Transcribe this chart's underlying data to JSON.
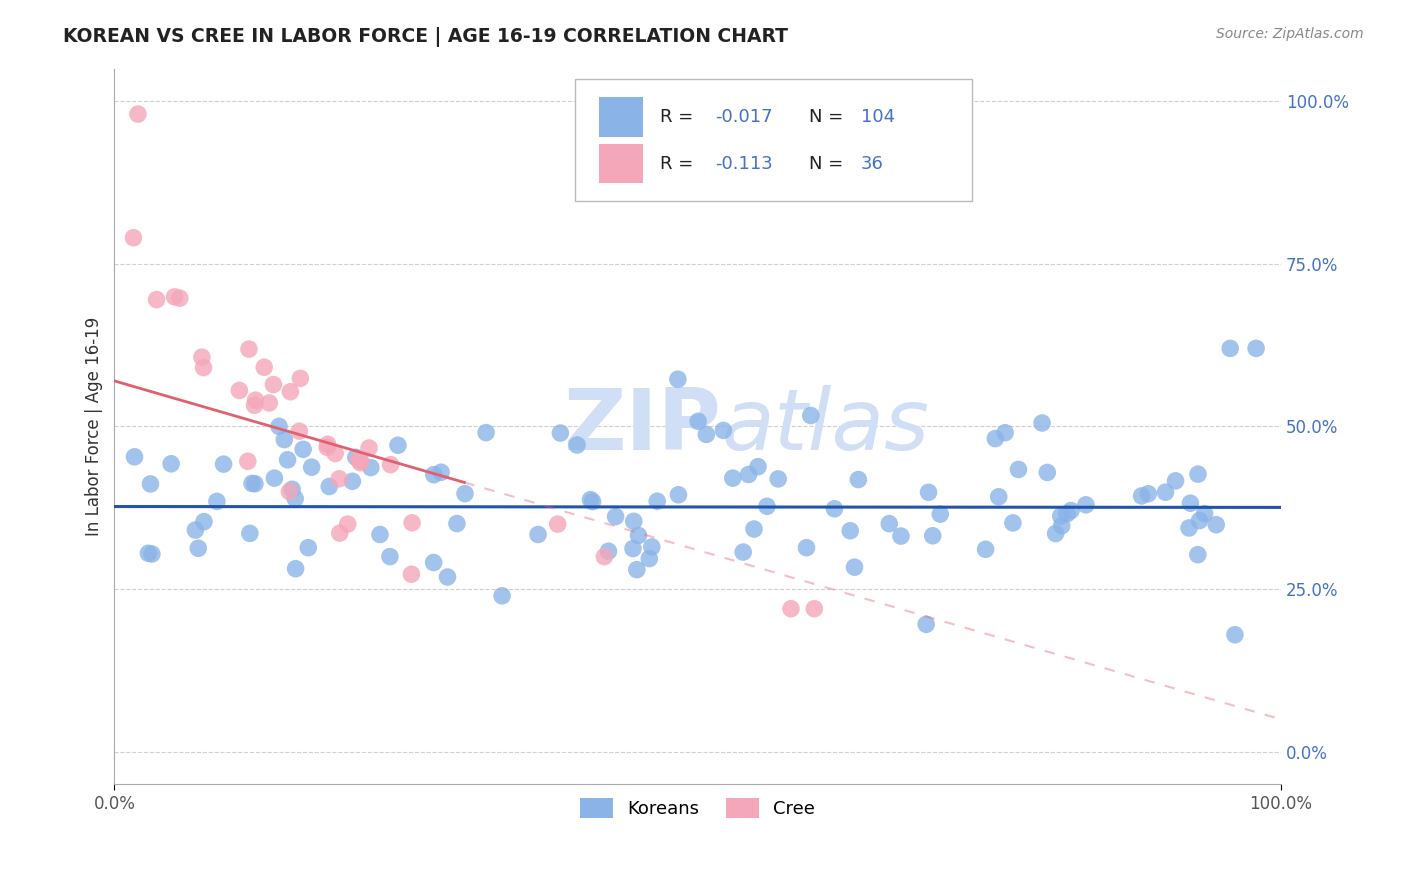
{
  "title": "KOREAN VS CREE IN LABOR FORCE | AGE 16-19 CORRELATION CHART",
  "source": "Source: ZipAtlas.com",
  "ylabel": "In Labor Force | Age 16-19",
  "xlim": [
    0.0,
    1.0
  ],
  "ylim": [
    -0.05,
    1.05
  ],
  "ytick_vals": [
    0.0,
    0.25,
    0.5,
    0.75,
    1.0
  ],
  "ytick_labels": [
    "0.0%",
    "25.0%",
    "50.0%",
    "75.0%",
    "100.0%"
  ],
  "xtick_vals": [
    0.0,
    1.0
  ],
  "xtick_labels": [
    "0.0%",
    "100.0%"
  ],
  "korean_R": -0.017,
  "korean_N": 104,
  "cree_R": -0.113,
  "cree_N": 36,
  "korean_color": "#8ab4e8",
  "cree_color": "#f4a7b9",
  "korean_line_color": "#2255aa",
  "cree_line_color": "#e06070",
  "watermark_color": "#d0dff5",
  "legend_label_korean": "Koreans",
  "legend_label_cree": "Cree",
  "background_color": "#ffffff",
  "grid_color": "#d0d0d0",
  "text_color_blue": "#4472c4",
  "text_color_dark": "#222222"
}
